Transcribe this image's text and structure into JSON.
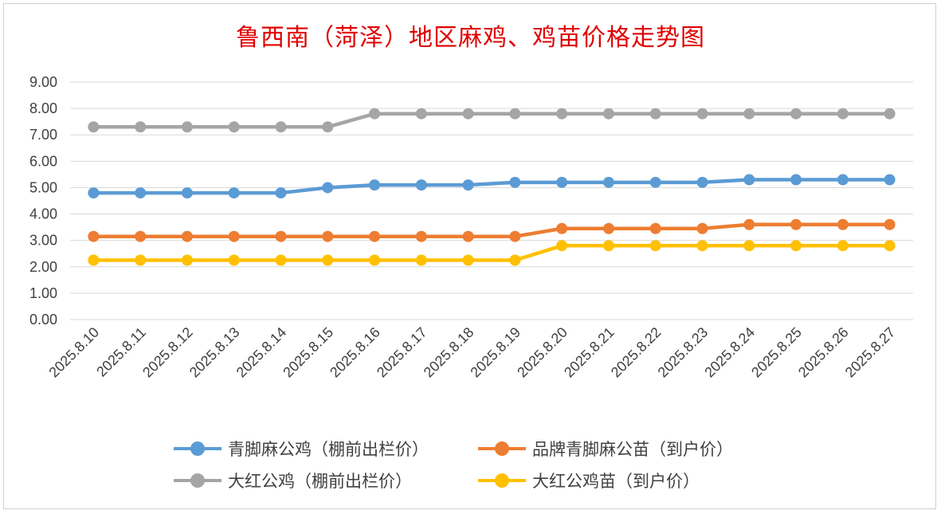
{
  "chart_data": {
    "type": "line",
    "title": "鲁西南（菏泽）地区麻鸡、鸡苗价格走势图",
    "categories": [
      "2025.8.10",
      "2025.8.11",
      "2025.8.12",
      "2025.8.13",
      "2025.8.14",
      "2025.8.15",
      "2025.8.16",
      "2025.8.17",
      "2025.8.18",
      "2025.8.19",
      "2025.8.20",
      "2025.8.21",
      "2025.8.22",
      "2025.8.23",
      "2025.8.24",
      "2025.8.25",
      "2025.8.26",
      "2025.8.27"
    ],
    "ylim": [
      0,
      9
    ],
    "yticks": [
      "0.00",
      "1.00",
      "2.00",
      "3.00",
      "4.00",
      "5.00",
      "6.00",
      "7.00",
      "8.00",
      "9.00"
    ],
    "xlabel": "",
    "ylabel": "",
    "grid": true,
    "legend_position": "bottom",
    "series": [
      {
        "name": "青脚麻公鸡（棚前出栏价）",
        "color": "#5b9bd5",
        "values": [
          4.8,
          4.8,
          4.8,
          4.8,
          4.8,
          5.0,
          5.1,
          5.1,
          5.1,
          5.2,
          5.2,
          5.2,
          5.2,
          5.2,
          5.3,
          5.3,
          5.3,
          5.3
        ]
      },
      {
        "name": "品牌青脚麻公苗（到户价）",
        "color": "#ed7d31",
        "values": [
          3.15,
          3.15,
          3.15,
          3.15,
          3.15,
          3.15,
          3.15,
          3.15,
          3.15,
          3.15,
          3.45,
          3.45,
          3.45,
          3.45,
          3.6,
          3.6,
          3.6,
          3.6
        ]
      },
      {
        "name": "大红公鸡（棚前出栏价）",
        "color": "#a5a5a5",
        "values": [
          7.3,
          7.3,
          7.3,
          7.3,
          7.3,
          7.3,
          7.8,
          7.8,
          7.8,
          7.8,
          7.8,
          7.8,
          7.8,
          7.8,
          7.8,
          7.8,
          7.8,
          7.8
        ]
      },
      {
        "name": "大红公鸡苗（到户价）",
        "color": "#ffc000",
        "values": [
          2.25,
          2.25,
          2.25,
          2.25,
          2.25,
          2.25,
          2.25,
          2.25,
          2.25,
          2.25,
          2.8,
          2.8,
          2.8,
          2.8,
          2.8,
          2.8,
          2.8,
          2.8
        ]
      }
    ]
  }
}
